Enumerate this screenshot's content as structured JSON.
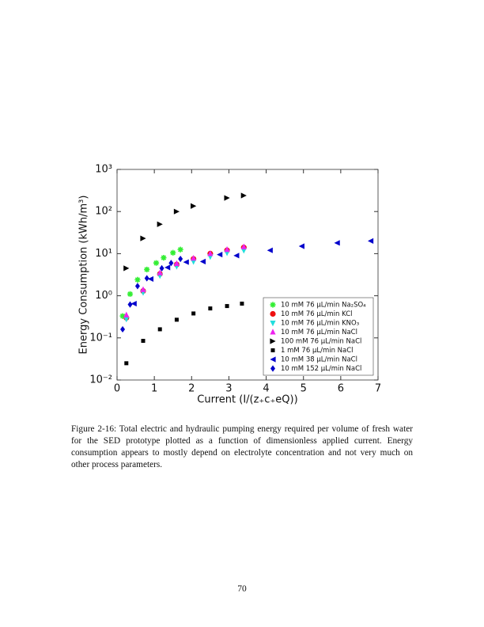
{
  "chart_data": {
    "type": "scatter",
    "xlabel": "Current (I/(z₊c₊eQ))",
    "ylabel": "Energy Consumption (kWh/m³)",
    "xlim": [
      0,
      7
    ],
    "xticks": [
      0,
      1,
      2,
      3,
      4,
      5,
      6,
      7
    ],
    "ylim": [
      0.01,
      1000
    ],
    "yscale": "log",
    "yticks": [
      {
        "value": 0.01,
        "label": "10⁻²"
      },
      {
        "value": 0.1,
        "label": "10⁻¹"
      },
      {
        "value": 1,
        "label": "10⁰"
      },
      {
        "value": 10,
        "label": "10¹"
      },
      {
        "value": 100,
        "label": "10²"
      },
      {
        "value": 1000,
        "label": "10³"
      }
    ],
    "legend": "lower right",
    "series": [
      {
        "name": "10 mM 76 μL/min Na₂SO₄",
        "color": "#33ee33",
        "marker": "asterisk",
        "x": [
          0.15,
          0.35,
          0.55,
          0.8,
          1.05,
          1.25,
          1.5,
          1.7
        ],
        "values": [
          0.33,
          1.1,
          2.4,
          4.2,
          6,
          8,
          10.5,
          12.5
        ]
      },
      {
        "name": "10 mM 76 μL/min KCl",
        "color": "#ee1111",
        "marker": "circle",
        "x": [
          0.25,
          0.7,
          1.15,
          1.6,
          2.05,
          2.5,
          2.95,
          3.4
        ],
        "values": [
          0.3,
          1.3,
          3.3,
          5.5,
          7.5,
          10,
          12,
          14
        ]
      },
      {
        "name": "10 mM 76 μL/min KNO₃",
        "color": "#22dddd",
        "marker": "triangle-down",
        "x": [
          0.25,
          0.7,
          1.15,
          1.6,
          2.05,
          2.5,
          2.95,
          3.4
        ],
        "values": [
          0.28,
          1.2,
          3,
          5,
          6.5,
          8.5,
          10.5,
          12
        ]
      },
      {
        "name": "10 mM 76 μL/min NaCl",
        "color": "#ee22ee",
        "marker": "triangle-up",
        "x": [
          0.25,
          0.7,
          1.15,
          1.6,
          2.05,
          2.5,
          2.95,
          3.4
        ],
        "values": [
          0.35,
          1.4,
          3.5,
          5.8,
          7.8,
          10,
          12.5,
          14.5
        ]
      },
      {
        "name": "100 mM 76 μL/min NaCl",
        "color": "#000000",
        "marker": "triangle-right",
        "x": [
          0.25,
          0.7,
          1.15,
          1.6,
          2.05,
          2.95,
          3.4
        ],
        "values": [
          4.5,
          23,
          50,
          100,
          135,
          210,
          240
        ]
      },
      {
        "name": "1 mM 76 μL/min NaCl",
        "color": "#000000",
        "marker": "square",
        "x": [
          0.25,
          0.7,
          1.15,
          1.6,
          2.05,
          2.5,
          2.95,
          3.35
        ],
        "values": [
          0.025,
          0.085,
          0.16,
          0.27,
          0.38,
          0.5,
          0.57,
          0.65
        ]
      },
      {
        "name": "10 mM 38 μL/min NaCl",
        "color": "#0000cc",
        "marker": "triangle-left",
        "x": [
          0.45,
          0.9,
          1.35,
          1.85,
          2.3,
          2.75,
          3.2,
          4.1,
          4.95,
          5.9,
          6.8
        ],
        "values": [
          0.65,
          2.5,
          4.7,
          6.3,
          6.5,
          9.5,
          9,
          12,
          15,
          18,
          20
        ]
      },
      {
        "name": "10 mM 152 μL/min NaCl",
        "color": "#0000cc",
        "marker": "diamond",
        "x": [
          0.15,
          0.35,
          0.55,
          0.8,
          1.2,
          1.45,
          1.7
        ],
        "values": [
          0.16,
          0.62,
          1.7,
          2.6,
          4.5,
          6,
          7.5
        ]
      }
    ]
  },
  "caption": "Figure 2-16: Total electric and hydraulic pumping energy required per volume of fresh water for the SED prototype plotted as a function of dimensionless applied current. Energy consumption appears to mostly depend on electrolyte concentration and not very much on other process parameters.",
  "page_number": "70"
}
